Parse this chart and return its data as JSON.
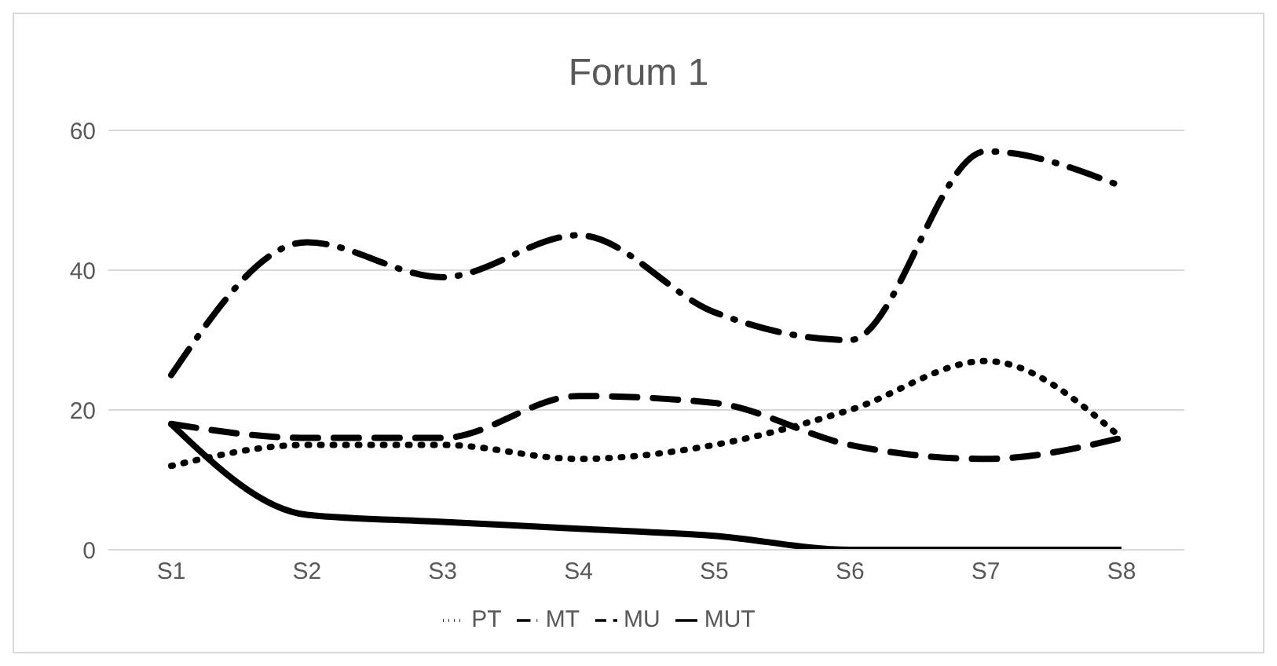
{
  "chart_data": {
    "type": "line",
    "title": "Forum 1",
    "categories": [
      "S1",
      "S2",
      "S3",
      "S4",
      "S5",
      "S6",
      "S7",
      "S8"
    ],
    "series": [
      {
        "name": "PT",
        "color": "#000000",
        "line_style": "dotted",
        "values": [
          12,
          15,
          15,
          13,
          15,
          20,
          27,
          16
        ]
      },
      {
        "name": "MT",
        "color": "#000000",
        "line_style": "dashdot",
        "values": [
          25,
          44,
          39,
          45,
          34,
          30,
          57,
          52
        ]
      },
      {
        "name": "MU",
        "color": "#000000",
        "line_style": "dashed",
        "values": [
          18,
          16,
          16,
          22,
          21,
          15,
          13,
          16
        ]
      },
      {
        "name": "MUT",
        "color": "#000000",
        "line_style": "solid",
        "values": [
          18,
          5,
          4,
          3,
          2,
          0,
          0,
          0
        ]
      }
    ],
    "ylim": [
      0,
      60
    ],
    "yticks": [
      0,
      20,
      40,
      60
    ],
    "grid": "y",
    "legend": "bottom",
    "marker": "none"
  }
}
